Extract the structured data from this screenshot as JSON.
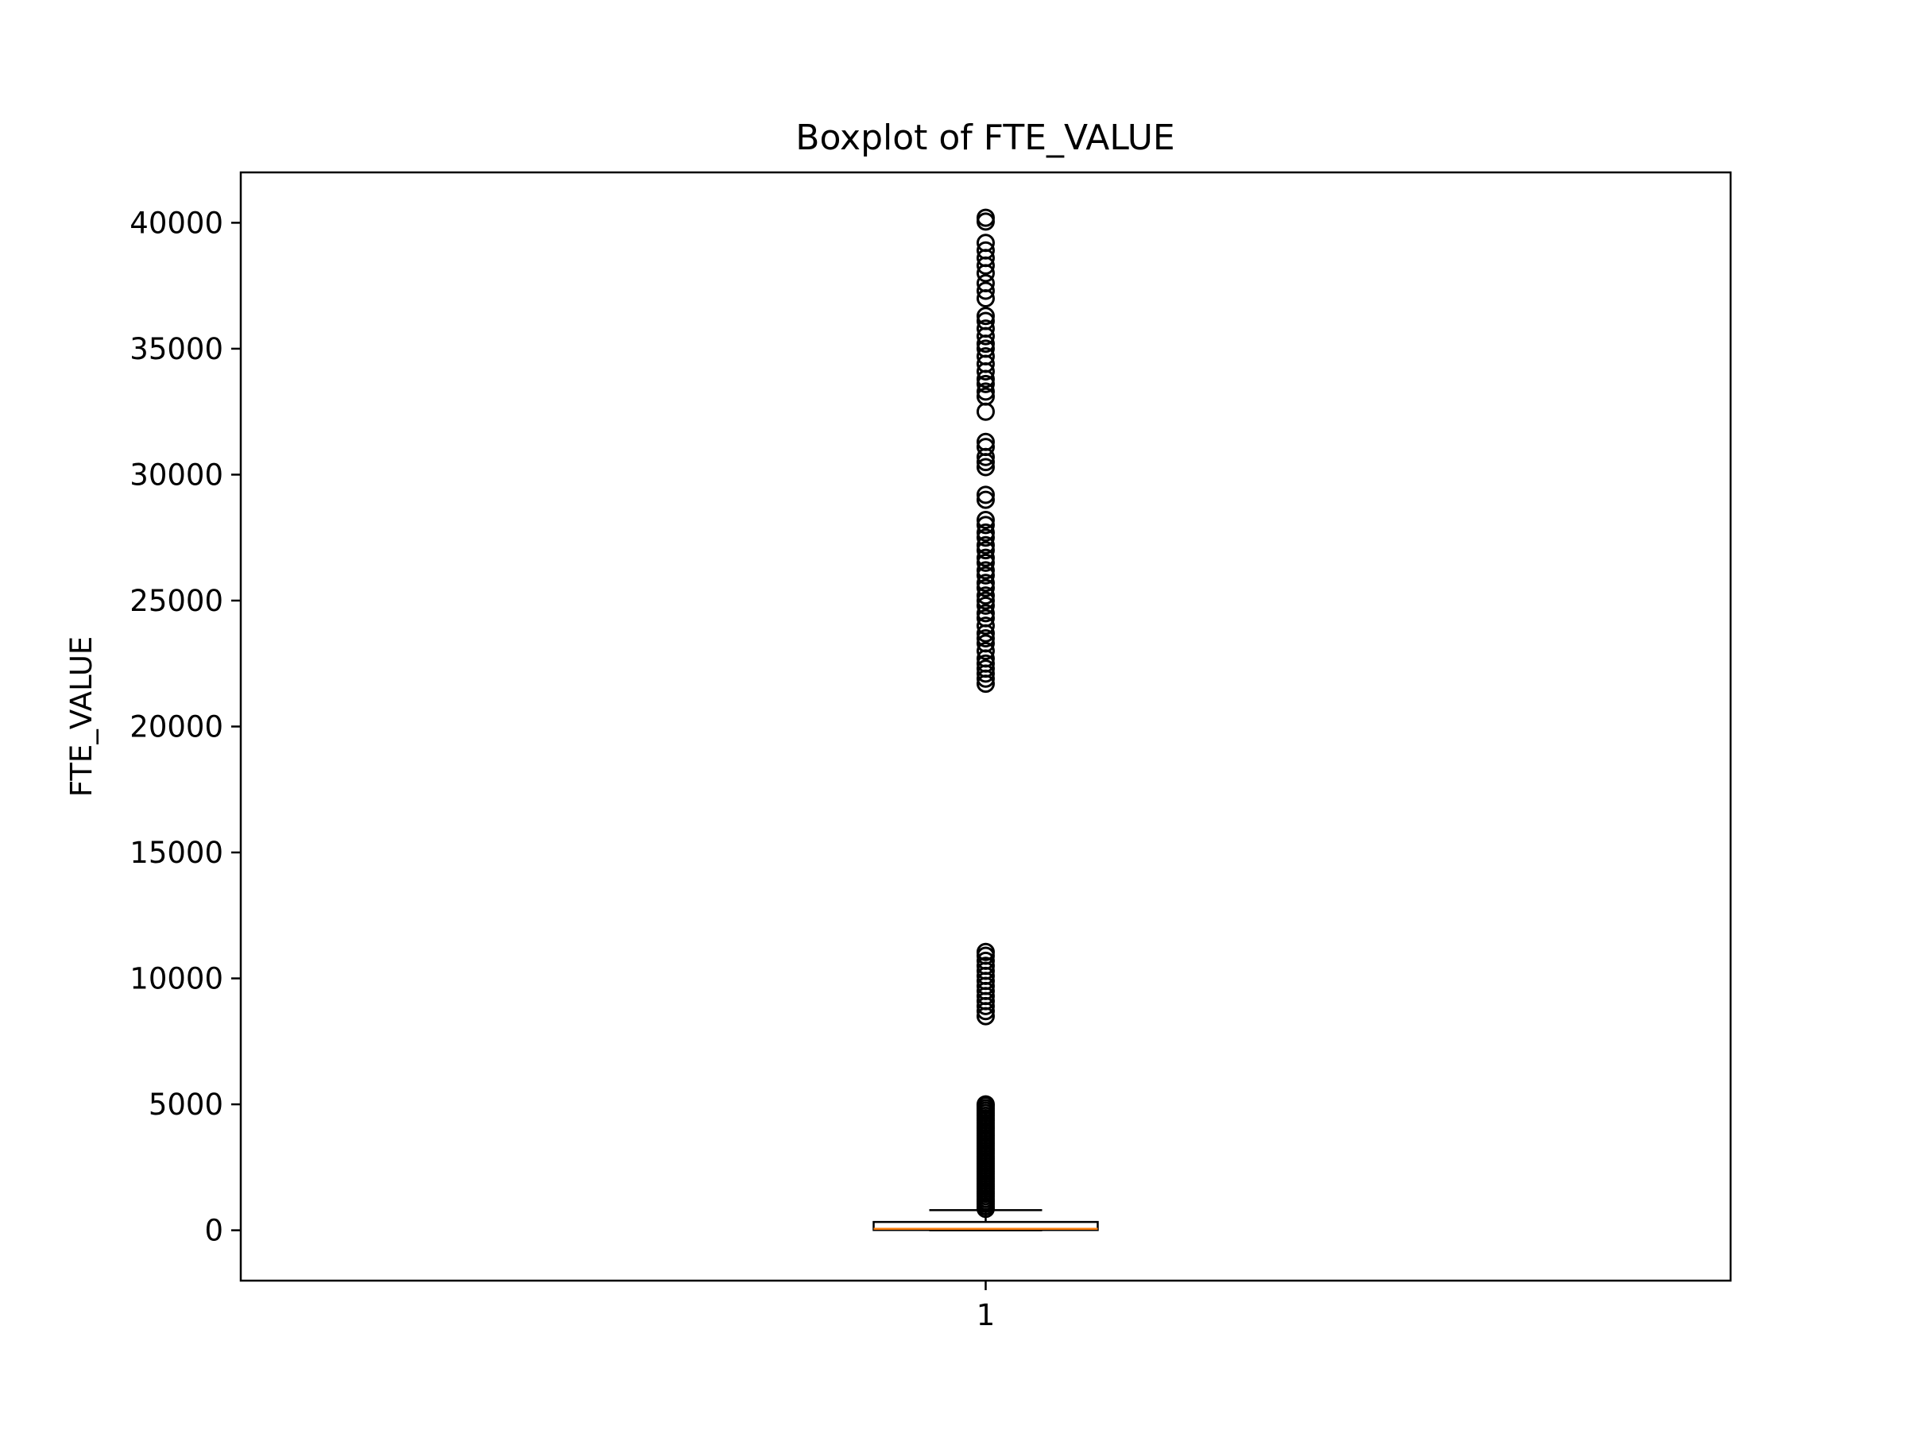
{
  "chart_data": {
    "type": "box",
    "title": "Boxplot of FTE_VALUE",
    "xlabel": "",
    "ylabel": "FTE_VALUE",
    "categories": [
      "1"
    ],
    "ylim": [
      -2000,
      42000
    ],
    "yticks": [
      0,
      5000,
      10000,
      15000,
      20000,
      25000,
      30000,
      35000,
      40000
    ],
    "grid": false,
    "box": {
      "category": "1",
      "whisker_low": 0,
      "q1": 10,
      "median": 60,
      "q3": 330,
      "whisker_high": 800
    },
    "outliers": [
      850,
      950,
      1050,
      1150,
      1250,
      1350,
      1450,
      1550,
      1650,
      1750,
      1850,
      1950,
      2050,
      2150,
      2250,
      2350,
      2450,
      2550,
      2650,
      2750,
      2850,
      2950,
      3050,
      3150,
      3250,
      3350,
      3450,
      3550,
      3650,
      3750,
      3850,
      3950,
      4050,
      4150,
      4250,
      4350,
      4450,
      4550,
      4650,
      4750,
      4850,
      4950,
      5000,
      8500,
      8700,
      8900,
      9100,
      9300,
      9500,
      9700,
      9900,
      10100,
      10300,
      10500,
      10700,
      10900,
      11050,
      21700,
      21900,
      22100,
      22300,
      22500,
      22700,
      23000,
      23300,
      23500,
      23700,
      24000,
      24300,
      24500,
      24800,
      25000,
      25200,
      25500,
      25700,
      26000,
      26200,
      26500,
      26700,
      27000,
      27200,
      27500,
      27700,
      28000,
      28200,
      29000,
      29200,
      30300,
      30500,
      30700,
      31100,
      31300,
      32500,
      33100,
      33300,
      33600,
      33800,
      34100,
      34400,
      34700,
      35000,
      35200,
      35500,
      35800,
      36100,
      36300,
      37000,
      37300,
      37600,
      38000,
      38300,
      38600,
      38900,
      39200,
      40050,
      40200
    ],
    "colors": {
      "box": "#000000",
      "median": "#ff7f0e",
      "outlier": "#000000"
    }
  }
}
